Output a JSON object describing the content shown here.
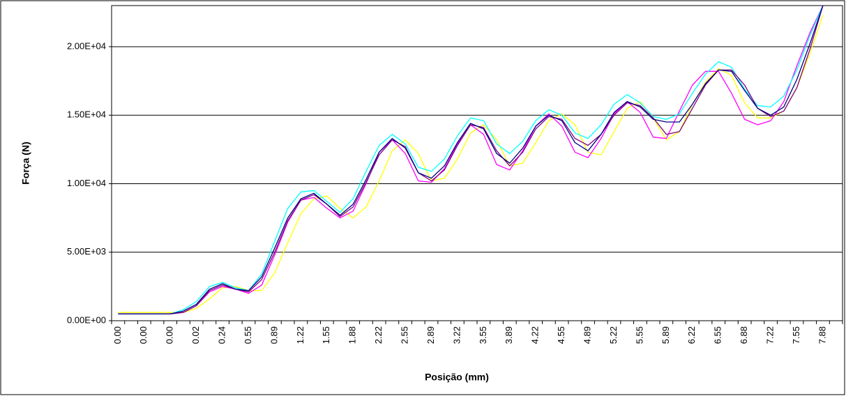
{
  "chart_data": {
    "type": "line",
    "y_label": "Força (N)",
    "x_label": "Posição (mm)",
    "categories": [
      "0.00",
      null,
      "0.00",
      null,
      "0.00",
      null,
      "0.02",
      null,
      "0.24",
      null,
      "0.55",
      null,
      "0.89",
      null,
      "1.22",
      null,
      "1.55",
      null,
      "1.88",
      null,
      "2.22",
      null,
      "2.55",
      null,
      "2.89",
      null,
      "3.22",
      null,
      "3.55",
      null,
      "3.89",
      null,
      "4.22",
      null,
      "4.55",
      null,
      "4.89",
      null,
      "5.22",
      null,
      "5.55",
      null,
      "5.89",
      null,
      "6.22",
      null,
      "6.55",
      null,
      "6.88",
      null,
      "7.22",
      null,
      "7.55",
      null,
      "7.88",
      null
    ],
    "series": [
      {
        "color": "#ffff00",
        "values": [
          600,
          600,
          600,
          600,
          600,
          600,
          900,
          1600,
          2400,
          2500,
          2200,
          2200,
          3500,
          5700,
          7800,
          8900,
          9100,
          8200,
          7500,
          8300,
          10200,
          12400,
          13200,
          12200,
          10200,
          10400,
          11800,
          13700,
          14300,
          13200,
          11300,
          11500,
          13000,
          14600,
          15100,
          14300,
          12300,
          12100,
          13800,
          15500,
          16000,
          14800,
          13200,
          13800,
          15800,
          17400,
          18400,
          17900,
          15900,
          14800,
          14800,
          15300,
          17000,
          19500,
          22300,
          null
        ]
      },
      {
        "color": "#ff00ff",
        "values": [
          500,
          500,
          500,
          500,
          500,
          600,
          1100,
          2100,
          2500,
          2300,
          2000,
          2600,
          4800,
          7200,
          8800,
          9000,
          8200,
          7500,
          8000,
          10000,
          12300,
          13200,
          12200,
          10200,
          10100,
          11100,
          12900,
          14300,
          13600,
          11400,
          11000,
          12400,
          14200,
          15100,
          14200,
          12300,
          11900,
          13300,
          15100,
          16000,
          15200,
          13400,
          13300,
          15300,
          17200,
          18200,
          18200,
          16600,
          14700,
          14300,
          14600,
          16000,
          18600,
          21000,
          23000,
          null
        ]
      },
      {
        "color": "#00ffff",
        "values": [
          500,
          500,
          500,
          500,
          500,
          800,
          1400,
          2500,
          2800,
          2400,
          2200,
          3400,
          5800,
          8200,
          9400,
          9500,
          8700,
          7900,
          8900,
          10900,
          12800,
          13600,
          12900,
          11200,
          10900,
          11800,
          13500,
          14800,
          14600,
          12900,
          12200,
          13100,
          14600,
          15400,
          15000,
          13700,
          13300,
          14300,
          15800,
          16500,
          15900,
          14900,
          14700,
          15100,
          16600,
          18000,
          18900,
          18500,
          16900,
          15700,
          15600,
          16400,
          18300,
          20800,
          23000,
          null
        ]
      },
      {
        "color": "#800080",
        "values": [
          500,
          500,
          500,
          500,
          500,
          600,
          1100,
          2200,
          2600,
          2300,
          2100,
          3000,
          5000,
          7300,
          8800,
          9200,
          8500,
          7600,
          8300,
          10100,
          12100,
          13200,
          12700,
          10800,
          10200,
          11000,
          12800,
          14300,
          14100,
          12400,
          11300,
          12300,
          14000,
          14900,
          14700,
          13300,
          12800,
          13600,
          15000,
          15900,
          15700,
          14800,
          13600,
          13800,
          15500,
          17200,
          18300,
          18300,
          17200,
          15500,
          14900,
          15300,
          17000,
          19800,
          23000,
          null
        ]
      },
      {
        "color": "#000080",
        "values": [
          500,
          500,
          500,
          500,
          500,
          700,
          1200,
          2300,
          2700,
          2300,
          2200,
          3200,
          5300,
          7500,
          8900,
          9300,
          8500,
          7700,
          8500,
          10300,
          12300,
          13300,
          12600,
          10800,
          10400,
          11300,
          13000,
          14400,
          14000,
          12200,
          11500,
          12600,
          14200,
          15000,
          14600,
          13000,
          12400,
          13600,
          15200,
          16000,
          15600,
          14700,
          14500,
          14500,
          15800,
          17300,
          18300,
          18200,
          16800,
          15500,
          15000,
          15600,
          17600,
          20200,
          23000,
          null
        ]
      }
    ],
    "ylim": [
      0,
      23000
    ],
    "yticks": [
      {
        "value": 0,
        "label": "0.00E+00"
      },
      {
        "value": 5000,
        "label": "5.00E+03"
      },
      {
        "value": 10000,
        "label": "1.00E+04"
      },
      {
        "value": 15000,
        "label": "1.50E+04"
      },
      {
        "value": 20000,
        "label": "2.00E+04"
      }
    ],
    "grid": true
  }
}
